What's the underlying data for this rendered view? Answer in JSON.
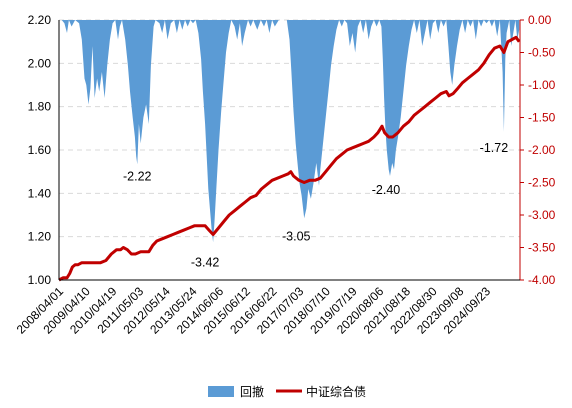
{
  "chart_data": {
    "type": "line",
    "title": "",
    "xlabel": "",
    "ylabel": "",
    "colors": {
      "drawdown": "#5b9bd5",
      "index": "#c00000"
    },
    "x_ticks": [
      "2008/04/01",
      "2009/04/10",
      "2010/04/19",
      "2011/05/03",
      "2012/05/14",
      "2013/05/24",
      "2014/06/06",
      "2015/06/12",
      "2016/06/22",
      "2017/07/03",
      "2018/07/10",
      "2019/07/19",
      "2020/08/06",
      "2021/08/18",
      "2022/08/30",
      "2023/09/08",
      "2024/09/23"
    ],
    "left_axis": {
      "ylim": [
        1.0,
        2.2
      ],
      "ticks": [
        "2.20",
        "2.00",
        "1.80",
        "1.60",
        "1.40",
        "1.20",
        "1.00"
      ]
    },
    "right_axis": {
      "ylim": [
        -4.0,
        0.0
      ],
      "ticks": [
        "0.00",
        "-0.50",
        "-1.00",
        "-1.50",
        "-2.00",
        "-2.50",
        "-3.00",
        "-3.50",
        "-4.00"
      ]
    },
    "legend": {
      "position": "bottom",
      "items": [
        "回撤",
        "中证综合债"
      ]
    },
    "series": [
      {
        "name": "回撤",
        "axis": "right",
        "style": "area",
        "points": [
          [
            2008.25,
            0
          ],
          [
            2008.35,
            0
          ],
          [
            2008.45,
            -0.05
          ],
          [
            2008.55,
            -0.2
          ],
          [
            2008.62,
            0
          ],
          [
            2008.72,
            -0.1
          ],
          [
            2008.85,
            0
          ],
          [
            2009.0,
            -0.05
          ],
          [
            2009.1,
            -0.3
          ],
          [
            2009.2,
            -0.9
          ],
          [
            2009.27,
            -1.0
          ],
          [
            2009.35,
            -1.3
          ],
          [
            2009.42,
            -1.05
          ],
          [
            2009.5,
            -0.4
          ],
          [
            2009.58,
            -1.2
          ],
          [
            2009.67,
            -0.9
          ],
          [
            2009.75,
            -1.1
          ],
          [
            2009.85,
            -0.8
          ],
          [
            2009.95,
            -1.2
          ],
          [
            2010.05,
            -0.7
          ],
          [
            2010.15,
            -0.3
          ],
          [
            2010.25,
            -0.05
          ],
          [
            2010.35,
            0
          ],
          [
            2010.45,
            -0.3
          ],
          [
            2010.52,
            -0.1
          ],
          [
            2010.6,
            0
          ],
          [
            2010.72,
            -0.3
          ],
          [
            2010.82,
            -0.7
          ],
          [
            2010.9,
            -1.1
          ],
          [
            2011.0,
            -1.5
          ],
          [
            2011.08,
            -1.8
          ],
          [
            2011.13,
            -2.1
          ],
          [
            2011.17,
            -2.22
          ],
          [
            2011.23,
            -1.6
          ],
          [
            2011.3,
            -1.9
          ],
          [
            2011.4,
            -1.5
          ],
          [
            2011.5,
            -1.3
          ],
          [
            2011.6,
            -1.6
          ],
          [
            2011.68,
            -0.7
          ],
          [
            2011.78,
            -0.1
          ],
          [
            2011.85,
            0
          ],
          [
            2012.0,
            -0.05
          ],
          [
            2012.1,
            -0.2
          ],
          [
            2012.2,
            0
          ],
          [
            2012.3,
            -0.3
          ],
          [
            2012.42,
            -0.05
          ],
          [
            2012.55,
            0
          ],
          [
            2012.65,
            -0.2
          ],
          [
            2012.75,
            0
          ],
          [
            2012.85,
            -0.15
          ],
          [
            2012.95,
            0
          ],
          [
            2013.05,
            -0.1
          ],
          [
            2013.15,
            0
          ],
          [
            2013.25,
            -0.05
          ],
          [
            2013.35,
            0
          ],
          [
            2013.45,
            -0.2
          ],
          [
            2013.55,
            -0.6
          ],
          [
            2013.62,
            -1.1
          ],
          [
            2013.7,
            -1.6
          ],
          [
            2013.76,
            -2.1
          ],
          [
            2013.82,
            -2.6
          ],
          [
            2013.88,
            -2.9
          ],
          [
            2013.94,
            -3.2
          ],
          [
            2014.0,
            -3.42
          ],
          [
            2014.05,
            -3.1
          ],
          [
            2014.12,
            -2.6
          ],
          [
            2014.2,
            -2.0
          ],
          [
            2014.3,
            -1.4
          ],
          [
            2014.38,
            -1.0
          ],
          [
            2014.48,
            -0.5
          ],
          [
            2014.58,
            -0.2
          ],
          [
            2014.68,
            0
          ],
          [
            2014.8,
            -0.1
          ],
          [
            2014.9,
            -0.3
          ],
          [
            2015.0,
            -0.05
          ],
          [
            2015.08,
            -0.4
          ],
          [
            2015.18,
            -0.2
          ],
          [
            2015.3,
            0
          ],
          [
            2015.4,
            -0.1
          ],
          [
            2015.5,
            0
          ],
          [
            2015.65,
            -0.15
          ],
          [
            2015.78,
            0
          ],
          [
            2015.9,
            -0.1
          ],
          [
            2016.0,
            0
          ],
          [
            2016.1,
            -0.2
          ],
          [
            2016.2,
            0
          ],
          [
            2016.3,
            -0.1
          ],
          [
            2016.45,
            0
          ],
          [
            2016.6,
            0
          ],
          [
            2016.75,
            0
          ],
          [
            2016.85,
            -0.3
          ],
          [
            2016.92,
            -0.8
          ],
          [
            2017.0,
            -1.4
          ],
          [
            2017.08,
            -1.9
          ],
          [
            2017.15,
            -2.2
          ],
          [
            2017.22,
            -2.5
          ],
          [
            2017.3,
            -2.7
          ],
          [
            2017.4,
            -3.05
          ],
          [
            2017.48,
            -2.9
          ],
          [
            2017.55,
            -2.6
          ],
          [
            2017.65,
            -2.75
          ],
          [
            2017.75,
            -2.5
          ],
          [
            2017.85,
            -2.2
          ],
          [
            2017.95,
            -2.55
          ],
          [
            2018.0,
            -2.3
          ],
          [
            2018.1,
            -1.9
          ],
          [
            2018.2,
            -1.5
          ],
          [
            2018.3,
            -1.1
          ],
          [
            2018.4,
            -0.7
          ],
          [
            2018.5,
            -0.4
          ],
          [
            2018.6,
            -0.15
          ],
          [
            2018.7,
            0
          ],
          [
            2018.8,
            -0.1
          ],
          [
            2018.9,
            0
          ],
          [
            2019.0,
            -0.05
          ],
          [
            2019.1,
            -0.4
          ],
          [
            2019.2,
            -0.2
          ],
          [
            2019.3,
            -0.5
          ],
          [
            2019.4,
            -0.1
          ],
          [
            2019.5,
            0
          ],
          [
            2019.6,
            -0.2
          ],
          [
            2019.7,
            0
          ],
          [
            2019.8,
            -0.3
          ],
          [
            2019.9,
            -0.1
          ],
          [
            2020.0,
            0
          ],
          [
            2020.1,
            -0.1
          ],
          [
            2020.2,
            0
          ],
          [
            2020.28,
            -0.1
          ],
          [
            2020.33,
            -0.6
          ],
          [
            2020.38,
            -1.2
          ],
          [
            2020.43,
            -1.7
          ],
          [
            2020.48,
            -2.0
          ],
          [
            2020.55,
            -2.3
          ],
          [
            2020.6,
            -2.4
          ],
          [
            2020.68,
            -2.2
          ],
          [
            2020.75,
            -2.3
          ],
          [
            2020.82,
            -2.0
          ],
          [
            2020.9,
            -1.8
          ],
          [
            2021.0,
            -1.5
          ],
          [
            2021.1,
            -1.1
          ],
          [
            2021.2,
            -0.7
          ],
          [
            2021.3,
            -0.4
          ],
          [
            2021.4,
            -0.15
          ],
          [
            2021.5,
            0
          ],
          [
            2021.6,
            -0.2
          ],
          [
            2021.7,
            0
          ],
          [
            2021.8,
            -0.4
          ],
          [
            2021.9,
            -0.2
          ],
          [
            2022.0,
            0
          ],
          [
            2022.1,
            -0.3
          ],
          [
            2022.2,
            -0.05
          ],
          [
            2022.3,
            0
          ],
          [
            2022.4,
            -0.2
          ],
          [
            2022.5,
            0
          ],
          [
            2022.6,
            -0.1
          ],
          [
            2022.7,
            0
          ],
          [
            2022.78,
            -0.4
          ],
          [
            2022.85,
            -0.8
          ],
          [
            2022.92,
            -1.0
          ],
          [
            2023.0,
            -0.7
          ],
          [
            2023.1,
            -0.4
          ],
          [
            2023.2,
            -0.15
          ],
          [
            2023.3,
            0
          ],
          [
            2023.4,
            -0.2
          ],
          [
            2023.5,
            0
          ],
          [
            2023.6,
            -0.1
          ],
          [
            2023.7,
            0
          ],
          [
            2023.8,
            -0.3
          ],
          [
            2023.9,
            0
          ],
          [
            2024.0,
            -0.1
          ],
          [
            2024.1,
            0
          ],
          [
            2024.2,
            -0.05
          ],
          [
            2024.3,
            0
          ],
          [
            2024.4,
            -0.1
          ],
          [
            2024.5,
            0
          ],
          [
            2024.6,
            -0.25
          ],
          [
            2024.7,
            0
          ],
          [
            2024.8,
            -0.8
          ],
          [
            2024.85,
            -1.72
          ],
          [
            2024.9,
            -0.6
          ],
          [
            2024.95,
            -0.2
          ],
          [
            2025.05,
            0
          ],
          [
            2025.12,
            -0.4
          ],
          [
            2025.2,
            -0.2
          ],
          [
            2025.28,
            0
          ],
          [
            2025.35,
            -0.3
          ],
          [
            2025.42,
            -0.15
          ]
        ]
      },
      {
        "name": "中证综合债",
        "axis": "left",
        "style": "line",
        "points": [
          [
            2008.25,
            1.0
          ],
          [
            2008.4,
            1.01
          ],
          [
            2008.55,
            1.01
          ],
          [
            2008.65,
            1.03
          ],
          [
            2008.75,
            1.06
          ],
          [
            2008.85,
            1.07
          ],
          [
            2008.95,
            1.07
          ],
          [
            2009.1,
            1.08
          ],
          [
            2009.3,
            1.08
          ],
          [
            2009.5,
            1.08
          ],
          [
            2009.65,
            1.08
          ],
          [
            2009.8,
            1.08
          ],
          [
            2010.0,
            1.09
          ],
          [
            2010.2,
            1.12
          ],
          [
            2010.4,
            1.14
          ],
          [
            2010.55,
            1.14
          ],
          [
            2010.65,
            1.15
          ],
          [
            2010.8,
            1.14
          ],
          [
            2010.95,
            1.12
          ],
          [
            2011.1,
            1.12
          ],
          [
            2011.3,
            1.13
          ],
          [
            2011.45,
            1.13
          ],
          [
            2011.6,
            1.13
          ],
          [
            2011.75,
            1.16
          ],
          [
            2011.9,
            1.18
          ],
          [
            2012.1,
            1.19
          ],
          [
            2012.3,
            1.2
          ],
          [
            2012.5,
            1.21
          ],
          [
            2012.7,
            1.22
          ],
          [
            2012.9,
            1.23
          ],
          [
            2013.1,
            1.24
          ],
          [
            2013.3,
            1.25
          ],
          [
            2013.5,
            1.25
          ],
          [
            2013.7,
            1.25
          ],
          [
            2013.85,
            1.23
          ],
          [
            2014.0,
            1.21
          ],
          [
            2014.2,
            1.24
          ],
          [
            2014.4,
            1.27
          ],
          [
            2014.6,
            1.3
          ],
          [
            2014.8,
            1.32
          ],
          [
            2015.0,
            1.34
          ],
          [
            2015.2,
            1.36
          ],
          [
            2015.4,
            1.38
          ],
          [
            2015.6,
            1.39
          ],
          [
            2015.8,
            1.42
          ],
          [
            2016.0,
            1.44
          ],
          [
            2016.2,
            1.46
          ],
          [
            2016.4,
            1.47
          ],
          [
            2016.6,
            1.48
          ],
          [
            2016.8,
            1.49
          ],
          [
            2016.9,
            1.5
          ],
          [
            2017.0,
            1.48
          ],
          [
            2017.2,
            1.46
          ],
          [
            2017.4,
            1.45
          ],
          [
            2017.6,
            1.46
          ],
          [
            2017.8,
            1.46
          ],
          [
            2018.0,
            1.47
          ],
          [
            2018.2,
            1.5
          ],
          [
            2018.4,
            1.53
          ],
          [
            2018.6,
            1.56
          ],
          [
            2018.8,
            1.58
          ],
          [
            2019.0,
            1.6
          ],
          [
            2019.2,
            1.61
          ],
          [
            2019.4,
            1.62
          ],
          [
            2019.6,
            1.63
          ],
          [
            2019.8,
            1.64
          ],
          [
            2020.0,
            1.66
          ],
          [
            2020.15,
            1.68
          ],
          [
            2020.3,
            1.71
          ],
          [
            2020.4,
            1.68
          ],
          [
            2020.55,
            1.66
          ],
          [
            2020.7,
            1.66
          ],
          [
            2020.9,
            1.68
          ],
          [
            2021.1,
            1.71
          ],
          [
            2021.3,
            1.73
          ],
          [
            2021.5,
            1.76
          ],
          [
            2021.7,
            1.78
          ],
          [
            2021.9,
            1.8
          ],
          [
            2022.1,
            1.82
          ],
          [
            2022.3,
            1.84
          ],
          [
            2022.5,
            1.86
          ],
          [
            2022.7,
            1.87
          ],
          [
            2022.8,
            1.85
          ],
          [
            2022.95,
            1.86
          ],
          [
            2023.1,
            1.88
          ],
          [
            2023.3,
            1.91
          ],
          [
            2023.5,
            1.93
          ],
          [
            2023.7,
            1.95
          ],
          [
            2023.9,
            1.97
          ],
          [
            2024.1,
            2.0
          ],
          [
            2024.3,
            2.04
          ],
          [
            2024.5,
            2.07
          ],
          [
            2024.7,
            2.08
          ],
          [
            2024.85,
            2.05
          ],
          [
            2025.0,
            2.1
          ],
          [
            2025.15,
            2.11
          ],
          [
            2025.3,
            2.12
          ],
          [
            2025.42,
            2.1
          ]
        ]
      }
    ],
    "annotations": [
      {
        "text": "-2.22",
        "x": 2011.17,
        "y": -2.22,
        "axis": "right"
      },
      {
        "text": "-3.42",
        "x": 2014.0,
        "y": -3.42,
        "axis": "right"
      },
      {
        "text": "-3.05",
        "x": 2017.4,
        "y": -3.05,
        "axis": "right"
      },
      {
        "text": "-2.40",
        "x": 2020.6,
        "y": -2.4,
        "axis": "right"
      },
      {
        "text": "-1.72",
        "x": 2024.85,
        "y": -1.72,
        "axis": "right"
      }
    ]
  }
}
